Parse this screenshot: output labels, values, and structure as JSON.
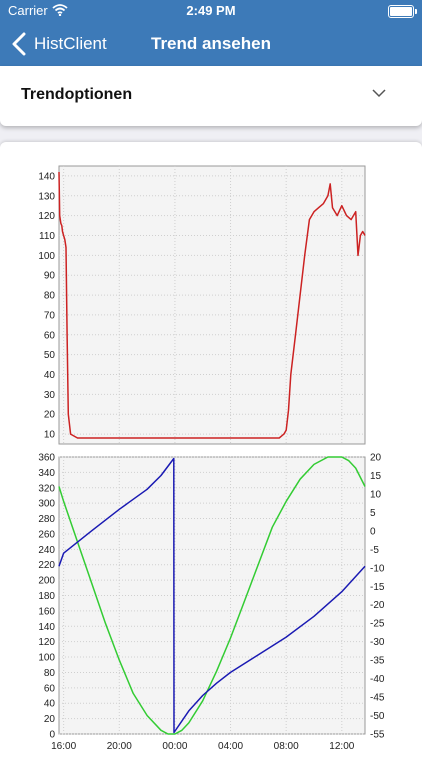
{
  "status": {
    "carrier": "Carrier",
    "time": "2:49 PM"
  },
  "nav": {
    "back_label": "HistClient",
    "title": "Trend ansehen"
  },
  "options": {
    "label": "Trendoptionen"
  },
  "colors": {
    "accent": "#3d7ab8",
    "series_red": "#cc2222",
    "series_green": "#33cc33",
    "series_blue": "#1a1ab3"
  },
  "chart_data": [
    {
      "type": "line",
      "title": "",
      "xlabel": "",
      "ylabel": "",
      "ylim": [
        5,
        145
      ],
      "y_ticks": [
        10,
        20,
        30,
        40,
        50,
        60,
        70,
        80,
        90,
        100,
        110,
        120,
        130,
        140
      ],
      "grid": true,
      "series": [
        {
          "color": "#cc2222",
          "x": [
            "15:40",
            "15:43",
            "15:48",
            "15:52",
            "15:55",
            "16:00",
            "16:05",
            "16:10",
            "16:15",
            "16:20",
            "16:30",
            "17:00",
            "18:00",
            "19:00",
            "20:00",
            "21:00",
            "22:00",
            "23:00",
            "00:00",
            "01:00",
            "02:00",
            "03:00",
            "04:00",
            "05:00",
            "06:00",
            "07:00",
            "07:30",
            "07:40",
            "07:50",
            "08:00",
            "08:10",
            "08:20",
            "08:40",
            "09:00",
            "09:20",
            "09:40",
            "10:00",
            "10:20",
            "10:40",
            "11:00",
            "11:10",
            "11:20",
            "11:30",
            "11:40",
            "12:00",
            "12:20",
            "12:40",
            "13:00",
            "13:10",
            "13:20",
            "13:30",
            "13:40"
          ],
          "values": [
            142,
            120,
            116,
            115,
            112,
            110,
            108,
            104,
            60,
            20,
            10,
            8,
            8,
            8,
            8,
            8,
            8,
            8,
            8,
            8,
            8,
            8,
            8,
            8,
            8,
            8,
            8,
            9,
            10,
            12,
            22,
            40,
            60,
            80,
            100,
            118,
            122,
            124,
            126,
            130,
            136,
            124,
            122,
            120,
            125,
            120,
            118,
            122,
            100,
            110,
            112,
            110
          ]
        }
      ]
    },
    {
      "type": "line",
      "title": "",
      "xlabel": "",
      "ylabel": "",
      "ylim": [
        0,
        360
      ],
      "y_ticks": [
        0,
        20,
        40,
        60,
        80,
        100,
        120,
        140,
        160,
        180,
        200,
        220,
        240,
        260,
        280,
        300,
        320,
        340,
        360
      ],
      "y2lim": [
        -55,
        20
      ],
      "y2_ticks": [
        20,
        15,
        10,
        5,
        0,
        -5,
        -10,
        -15,
        -20,
        -25,
        -30,
        -35,
        -40,
        -45,
        -50,
        -55
      ],
      "x_ticks": [
        "16:00",
        "20:00",
        "00:00",
        "04:00",
        "08:00",
        "12:00"
      ],
      "grid": true,
      "series": [
        {
          "axis": "right",
          "color": "#33cc33",
          "x": [
            "15:40",
            "16:00",
            "17:00",
            "18:00",
            "19:00",
            "20:00",
            "21:00",
            "22:00",
            "23:00",
            "23:30",
            "00:00",
            "00:30",
            "01:00",
            "02:00",
            "03:00",
            "04:00",
            "05:00",
            "06:00",
            "07:00",
            "08:00",
            "09:00",
            "10:00",
            "11:00",
            "12:00",
            "12:30",
            "13:00",
            "13:40"
          ],
          "values": [
            12,
            8,
            -3,
            -14,
            -25,
            -35,
            -44,
            -50,
            -54,
            -55,
            -55,
            -54,
            -52,
            -46,
            -38,
            -29,
            -19,
            -9,
            1,
            8,
            14,
            18,
            20,
            20,
            19,
            17,
            12
          ]
        },
        {
          "axis": "left",
          "color": "#1a1ab3",
          "x": [
            "15:40",
            "16:00",
            "18:00",
            "20:00",
            "22:00",
            "23:00",
            "23:55",
            "23:56",
            "01:00",
            "02:00",
            "03:00",
            "04:00",
            "06:00",
            "08:00",
            "10:00",
            "12:00",
            "13:40"
          ],
          "values": [
            218,
            235,
            264,
            292,
            318,
            336,
            358,
            2,
            30,
            50,
            66,
            80,
            103,
            126,
            153,
            185,
            218
          ]
        }
      ]
    }
  ]
}
